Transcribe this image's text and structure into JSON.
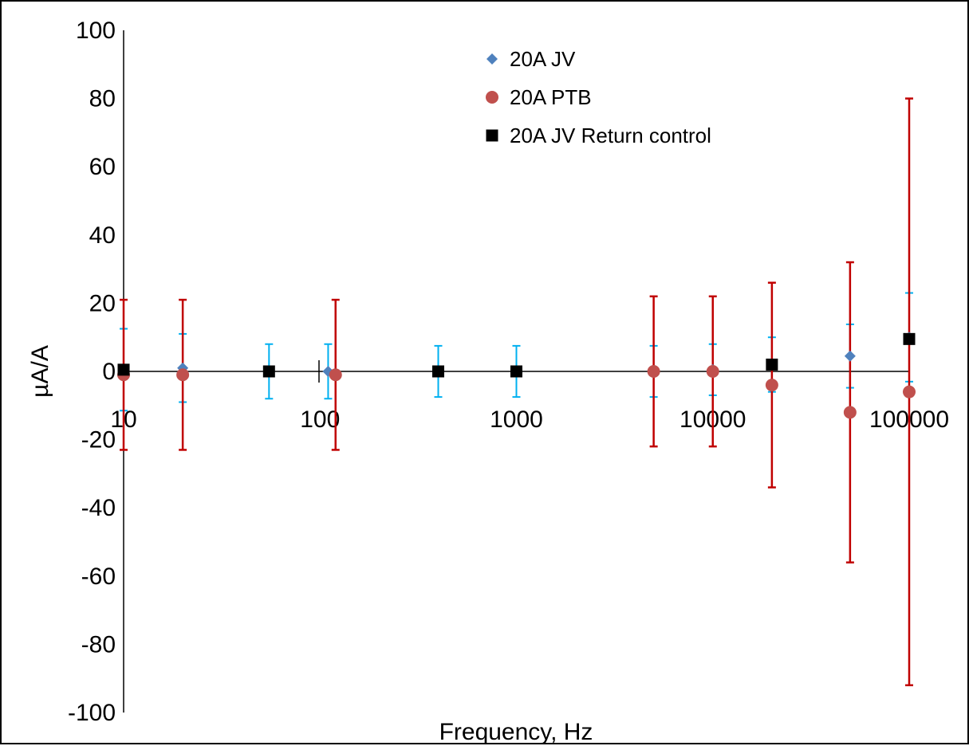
{
  "chart_data": {
    "type": "scatter",
    "title": "",
    "xlabel": "Frequency, Hz",
    "ylabel": "µA/A",
    "x_scale": "log",
    "xlim": [
      10,
      100000
    ],
    "ylim": [
      -100,
      100
    ],
    "y_ticks": [
      "100",
      "80",
      "60",
      "40",
      "20",
      "0",
      "-20",
      "-40",
      "-60",
      "-80",
      "-100"
    ],
    "x_ticks": [
      "10",
      "100",
      "1000",
      "10000",
      "100000"
    ],
    "grid": false,
    "legend_position": "top-center",
    "series": [
      {
        "name": "20A JV",
        "marker": "diamond",
        "color": "#4f81bd",
        "error_color": "#00b0f0",
        "points": [
          {
            "x": 10,
            "y": 0.5,
            "err": 12
          },
          {
            "x": 20,
            "y": 1,
            "err": 10
          },
          {
            "x": 55,
            "y": 0,
            "err": 8
          },
          {
            "x": 110,
            "y": 0,
            "err": 8
          },
          {
            "x": 400,
            "y": 0,
            "err": 7.5
          },
          {
            "x": 1000,
            "y": 0,
            "err": 7.5
          },
          {
            "x": 5000,
            "y": 0,
            "err": 7.5
          },
          {
            "x": 10000,
            "y": 0.5,
            "err": 7.5
          },
          {
            "x": 20000,
            "y": 2,
            "err": 8
          },
          {
            "x": 50000,
            "y": 4.5,
            "err": 9.3
          },
          {
            "x": 100000,
            "y": 10,
            "err": 13
          }
        ]
      },
      {
        "name": "20A PTB",
        "marker": "circle",
        "color": "#c0504d",
        "error_color": "#c00000",
        "points": [
          {
            "x": 10,
            "y": -1,
            "err": 22
          },
          {
            "x": 20,
            "y": -1,
            "err": 22
          },
          {
            "x": 120,
            "y": -1,
            "err": 22
          },
          {
            "x": 5000,
            "y": 0,
            "err": 22
          },
          {
            "x": 10000,
            "y": 0,
            "err": 22
          },
          {
            "x": 20000,
            "y": -4,
            "err": 30
          },
          {
            "x": 50000,
            "y": -12,
            "err": 44
          },
          {
            "x": 100000,
            "y": -6,
            "err": 86
          }
        ]
      },
      {
        "name": "20A JV Return control",
        "marker": "square",
        "color": "#000000",
        "error_color": "#000000",
        "points": [
          {
            "x": 10,
            "y": 0.5
          },
          {
            "x": 55,
            "y": 0
          },
          {
            "x": 400,
            "y": 0
          },
          {
            "x": 1000,
            "y": 0
          },
          {
            "x": 20000,
            "y": 2
          },
          {
            "x": 100000,
            "y": 9.5
          }
        ]
      }
    ]
  }
}
